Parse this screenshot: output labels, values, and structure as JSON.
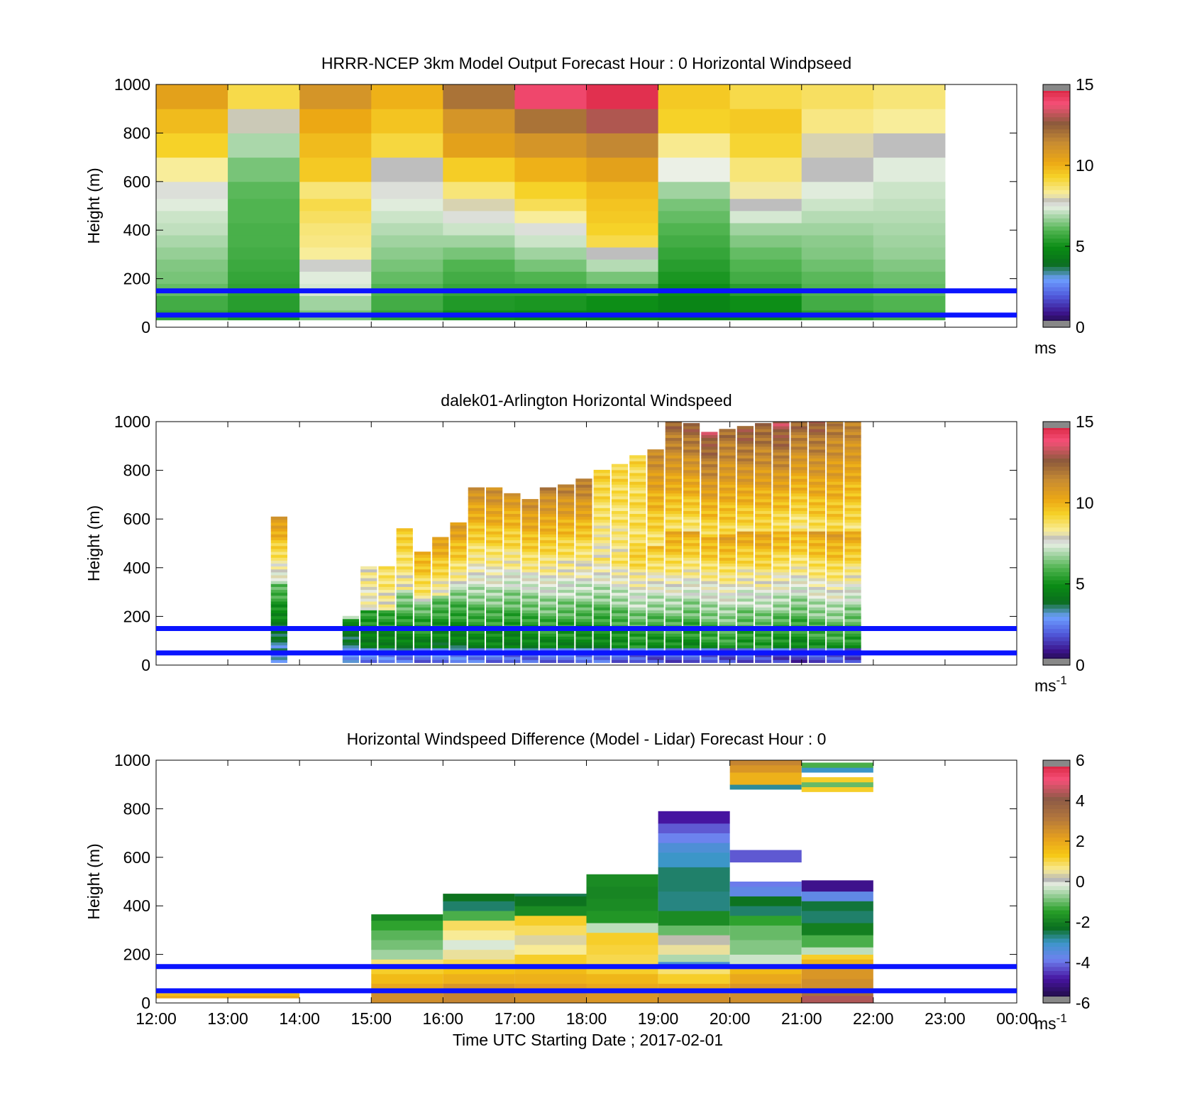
{
  "x_ticks": [
    "12:00",
    "13:00",
    "14:00",
    "15:00",
    "16:00",
    "17:00",
    "18:00",
    "19:00",
    "20:00",
    "21:00",
    "22:00",
    "23:00",
    "00:00"
  ],
  "xlabel": "Time UTC  Starting Date ; 2017-02-01",
  "chart_data": [
    {
      "type": "heatmap",
      "title": "HRRR-NCEP 3km Model Output   Forecast Hour : 0 Horizontal Windpseed",
      "ylabel": "Height (m)",
      "ylim": [
        0,
        1000
      ],
      "y_ticks": [
        "0",
        "200",
        "400",
        "600",
        "800",
        "1000"
      ],
      "xlim_hours": [
        0,
        12
      ],
      "clim": [
        0,
        15
      ],
      "colorbar_ticks": [
        "0",
        "5",
        "10",
        "15"
      ],
      "colorbar_unit": "ms",
      "hlines_m": [
        150,
        50
      ],
      "x_hours": [
        0,
        1,
        2,
        3,
        4,
        5,
        6,
        7,
        8,
        9,
        10
      ],
      "height_bins_m": [
        [
          30,
          70
        ],
        [
          70,
          130
        ],
        [
          130,
          180
        ],
        [
          180,
          230
        ],
        [
          230,
          280
        ],
        [
          280,
          330
        ],
        [
          330,
          380
        ],
        [
          380,
          430
        ],
        [
          430,
          480
        ],
        [
          480,
          530
        ],
        [
          530,
          600
        ],
        [
          600,
          700
        ],
        [
          700,
          800
        ],
        [
          800,
          900
        ],
        [
          900,
          1000
        ]
      ],
      "values_ms": [
        [
          5.6,
          5.2,
          6.4,
          5.5,
          5.0,
          4.8,
          4.6,
          4.4,
          4.7,
          5.4,
          5.8
        ],
        [
          5.8,
          5.4,
          6.8,
          5.8,
          5.3,
          5.2,
          5.0,
          4.7,
          5.0,
          5.8,
          6.0
        ],
        [
          6.2,
          5.5,
          7.3,
          6.0,
          5.6,
          5.6,
          5.8,
          5.0,
          5.4,
          6.0,
          6.2
        ],
        [
          6.4,
          5.6,
          7.4,
          6.2,
          5.8,
          6.0,
          6.4,
          5.2,
          5.8,
          6.1,
          6.3
        ],
        [
          6.5,
          5.7,
          7.7,
          6.4,
          6.0,
          6.4,
          7.0,
          5.4,
          6.0,
          6.3,
          6.5
        ],
        [
          6.7,
          5.8,
          8.3,
          6.6,
          6.4,
          6.8,
          7.8,
          5.6,
          6.2,
          6.5,
          6.7
        ],
        [
          6.9,
          5.9,
          8.5,
          6.8,
          6.8,
          7.2,
          9.0,
          5.8,
          6.5,
          6.6,
          6.8
        ],
        [
          7.1,
          5.9,
          8.6,
          7.0,
          7.2,
          7.6,
          9.3,
          6.0,
          6.8,
          6.8,
          6.9
        ],
        [
          7.2,
          6.0,
          8.8,
          7.2,
          7.6,
          8.3,
          9.5,
          6.2,
          7.3,
          7.0,
          7.0
        ],
        [
          7.4,
          6.0,
          9.0,
          7.4,
          8.0,
          8.9,
          9.6,
          6.4,
          7.8,
          7.2,
          7.1
        ],
        [
          7.6,
          6.1,
          8.6,
          7.6,
          8.6,
          9.3,
          9.8,
          6.8,
          8.2,
          7.4,
          7.2
        ],
        [
          8.3,
          6.4,
          9.5,
          7.8,
          9.4,
          10.0,
          10.5,
          7.5,
          8.6,
          7.8,
          7.4
        ],
        [
          9.3,
          6.9,
          9.8,
          9.1,
          10.5,
          11.0,
          11.5,
          8.4,
          9.2,
          8.0,
          7.8
        ],
        [
          9.8,
          7.9,
          10.2,
          9.6,
          11.0,
          12.0,
          13.0,
          9.3,
          9.5,
          8.5,
          8.3
        ],
        [
          10.5,
          9.0,
          11.0,
          10.0,
          12.0,
          14.0,
          14.5,
          9.5,
          9.0,
          8.8,
          8.6
        ]
      ]
    },
    {
      "type": "heatmap",
      "title": "dalek01-Arlington  Horizontal Windspeed",
      "ylabel": "Height (m)",
      "ylim": [
        0,
        1000
      ],
      "y_ticks": [
        "0",
        "200",
        "400",
        "600",
        "800",
        "1000"
      ],
      "xlim_hours": [
        0,
        12
      ],
      "clim": [
        0,
        15
      ],
      "colorbar_ticks": [
        "0",
        "5",
        "10",
        "15"
      ],
      "colorbar_unit": "ms",
      "colorbar_unit_exp": "-1",
      "hlines_m": [
        150,
        50
      ],
      "profiles_description_values": {
        "profile_width_hours": 0.25,
        "start_hours": [
          1.6,
          2.6,
          2.85,
          3.1,
          3.35,
          3.6,
          3.85,
          4.1,
          4.35,
          4.6,
          4.85,
          5.1,
          5.35,
          5.6,
          5.85,
          6.1,
          6.35,
          6.6,
          6.85,
          7.1,
          7.35,
          7.6,
          7.85,
          8.1,
          8.35,
          8.6,
          8.85,
          9.1,
          9.35,
          9.6
        ],
        "top_heights_m": [
          600,
          200,
          400,
          400,
          560,
          460,
          520,
          580,
          720,
          730,
          700,
          680,
          720,
          740,
          760,
          800,
          820,
          860,
          880,
          1000,
          990,
          950,
          970,
          980,
          990,
          1000,
          1000,
          1000,
          1000,
          1000
        ],
        "surface_speed_ms": [
          2.6,
          2.5,
          2.2,
          2.3,
          2.2,
          2.1,
          2.0,
          2.2,
          2.1,
          2.0,
          1.9,
          2.0,
          2.1,
          1.8,
          1.9,
          2.0,
          1.8,
          1.7,
          1.6,
          1.7,
          1.6,
          1.5,
          1.4,
          1.6,
          1.5,
          1.4,
          1.3,
          1.4,
          1.5,
          1.3
        ],
        "mid_speed_ms": [
          4.5,
          4.6,
          5.2,
          5.4,
          5.5,
          5.6,
          5.3,
          5.2,
          5.5,
          5.6,
          5.4,
          5.6,
          5.8,
          5.7,
          5.6,
          5.5,
          5.8,
          6.2,
          6.0,
          6.1,
          5.9,
          6.2,
          6.4,
          6.1,
          6.3,
          6.0,
          5.8,
          6.2,
          6.4,
          6.1
        ],
        "upper_speed_ms": [
          11.0,
          7.5,
          8.4,
          9.0,
          9.6,
          10.2,
          10.8,
          11.0,
          11.2,
          11.5,
          11.0,
          11.4,
          11.6,
          11.8,
          12.0,
          9.4,
          9.2,
          9.1,
          11.6,
          12.4,
          12.6,
          13.0,
          12.2,
          12.8,
          12.5,
          13.2,
          12.4,
          12.6,
          12.0,
          11.8
        ]
      }
    },
    {
      "type": "heatmap",
      "title": "Horizontal Windspeed Difference (Model - Lidar) Forecast Hour : 0",
      "ylabel": "Height (m)",
      "ylim": [
        0,
        1000
      ],
      "y_ticks": [
        "0",
        "200",
        "400",
        "600",
        "800",
        "1000"
      ],
      "xlim_hours": [
        0,
        12
      ],
      "clim": [
        -6,
        6
      ],
      "colorbar_ticks": [
        "-6",
        "-4",
        "-2",
        "0",
        "2",
        "4",
        "6"
      ],
      "colorbar_unit": "ms",
      "colorbar_unit_exp": "-1",
      "hlines_m": [
        150,
        50
      ],
      "segments": [
        {
          "x0": 0,
          "x1": 2,
          "layers": [
            [
              20,
              30,
              2.0
            ],
            [
              30,
              40,
              1.6
            ]
          ]
        },
        {
          "x0": 3,
          "x1": 4,
          "layers": [
            [
              0,
              40,
              2.6
            ],
            [
              40,
              80,
              2.0
            ],
            [
              80,
              120,
              1.6
            ],
            [
              120,
              150,
              1.2
            ],
            [
              150,
              180,
              0.8
            ],
            [
              180,
              220,
              -0.6
            ],
            [
              220,
              260,
              -0.9
            ],
            [
              260,
              300,
              -1.1
            ],
            [
              300,
              340,
              -1.4
            ],
            [
              340,
              365,
              -1.9
            ]
          ]
        },
        {
          "x0": 4,
          "x1": 5,
          "layers": [
            [
              0,
              40,
              2.8
            ],
            [
              40,
              80,
              2.4
            ],
            [
              80,
              120,
              1.8
            ],
            [
              120,
              150,
              1.4
            ],
            [
              150,
              180,
              1.0
            ],
            [
              180,
              220,
              0.5
            ],
            [
              220,
              260,
              -0.2
            ],
            [
              260,
              300,
              0.6
            ],
            [
              300,
              340,
              0.9
            ],
            [
              340,
              380,
              -1.2
            ],
            [
              380,
              420,
              -2.6
            ],
            [
              420,
              450,
              -2.2
            ]
          ]
        },
        {
          "x0": 5,
          "x1": 6,
          "layers": [
            [
              0,
              40,
              2.6
            ],
            [
              40,
              80,
              2.2
            ],
            [
              80,
              120,
              1.8
            ],
            [
              120,
              160,
              1.6
            ],
            [
              160,
              200,
              1.2
            ],
            [
              200,
              240,
              0.6
            ],
            [
              240,
              280,
              0.4
            ],
            [
              280,
              320,
              0.9
            ],
            [
              320,
              360,
              1.2
            ],
            [
              360,
              400,
              -1.8
            ],
            [
              400,
              440,
              -2.2
            ],
            [
              440,
              450,
              -2.5
            ]
          ]
        },
        {
          "x0": 6,
          "x1": 7,
          "layers": [
            [
              0,
              40,
              2.4
            ],
            [
              40,
              80,
              2.0
            ],
            [
              80,
              120,
              1.7
            ],
            [
              120,
              160,
              1.2
            ],
            [
              160,
              200,
              1.0
            ],
            [
              200,
              240,
              1.1
            ],
            [
              240,
              290,
              1.2
            ],
            [
              290,
              330,
              -0.4
            ],
            [
              330,
              380,
              -1.6
            ],
            [
              380,
              430,
              -1.8
            ],
            [
              430,
              480,
              -1.9
            ],
            [
              480,
              530,
              -1.8
            ]
          ]
        },
        {
          "x0": 7,
          "x1": 8,
          "layers": [
            [
              0,
              40,
              2.6
            ],
            [
              40,
              80,
              2.0
            ],
            [
              80,
              120,
              1.2
            ],
            [
              120,
              150,
              0.8
            ],
            [
              150,
              170,
              -3.2
            ],
            [
              170,
              200,
              -0.5
            ],
            [
              200,
              240,
              0.5
            ],
            [
              240,
              280,
              0.2
            ],
            [
              280,
              320,
              -1.0
            ],
            [
              320,
              380,
              -1.8
            ],
            [
              380,
              460,
              -2.7
            ],
            [
              460,
              560,
              -2.6
            ],
            [
              560,
              620,
              -3.0
            ],
            [
              620,
              660,
              -3.3
            ],
            [
              660,
              700,
              -3.8
            ],
            [
              700,
              740,
              -4.2
            ],
            [
              740,
              790,
              -4.8
            ]
          ]
        },
        {
          "x0": 8,
          "x1": 9,
          "layers": [
            [
              0,
              40,
              2.6
            ],
            [
              40,
              80,
              2.4
            ],
            [
              80,
              120,
              2.0
            ],
            [
              120,
              160,
              1.6
            ],
            [
              160,
              200,
              -0.3
            ],
            [
              200,
              260,
              -0.8
            ],
            [
              260,
              320,
              -1.0
            ],
            [
              320,
              360,
              -1.4
            ],
            [
              360,
              400,
              -2.6
            ],
            [
              400,
              440,
              -2.2
            ],
            [
              440,
              480,
              -3.6
            ],
            [
              480,
              500,
              -3.9
            ],
            [
              580,
              630,
              -4.2
            ],
            [
              880,
              900,
              -2.8
            ],
            [
              900,
              950,
              1.8
            ],
            [
              950,
              980,
              2.4
            ],
            [
              980,
              1000,
              2.8
            ]
          ]
        },
        {
          "x0": 9,
          "x1": 10,
          "layers": [
            [
              0,
              30,
              4.4
            ],
            [
              30,
              60,
              3.4
            ],
            [
              60,
              100,
              2.6
            ],
            [
              100,
              140,
              2.4
            ],
            [
              140,
              180,
              1.8
            ],
            [
              180,
              200,
              1.2
            ],
            [
              200,
              230,
              -0.4
            ],
            [
              230,
              280,
              -1.2
            ],
            [
              280,
              330,
              -2.0
            ],
            [
              330,
              380,
              -2.6
            ],
            [
              380,
              420,
              -2.4
            ],
            [
              420,
              460,
              -3.6
            ],
            [
              460,
              505,
              -5.0
            ],
            [
              870,
              890,
              1.2
            ],
            [
              890,
              910,
              -1.0
            ],
            [
              910,
              930,
              1.2
            ],
            [
              950,
              970,
              -3.0
            ],
            [
              970,
              990,
              -1.2
            ]
          ]
        }
      ]
    }
  ]
}
